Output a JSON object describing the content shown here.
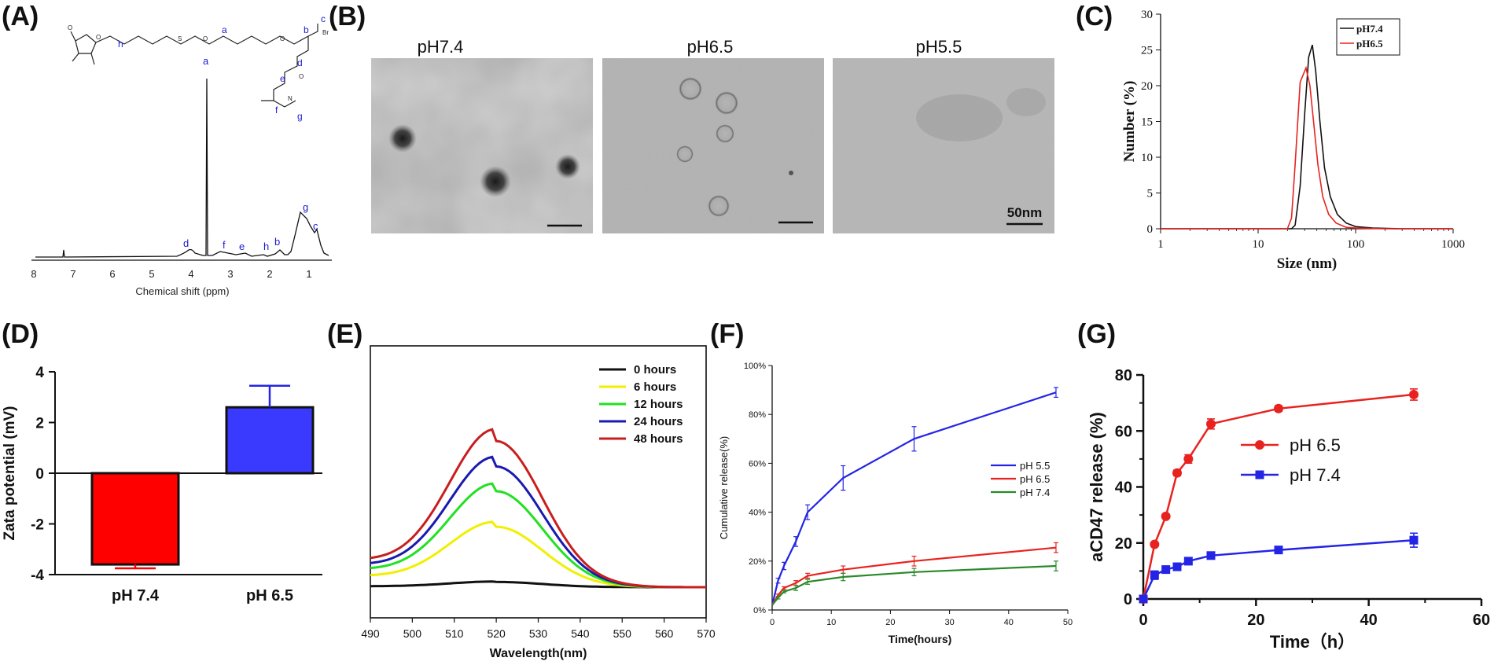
{
  "colors": {
    "red": "#e8231f",
    "blue": "#2424e6",
    "green": "#2a8a2a",
    "black": "#111111",
    "yellow": "#f0f000",
    "lime": "#22e022",
    "navy": "#1a1ab0",
    "darkred": "#c81e1e",
    "bar_blue": "#3a3aff"
  },
  "panels": {
    "A": {
      "letter": "(A)",
      "xlabel": "Chemical shift (ppm)",
      "xticks": [
        "8",
        "7",
        "6",
        "5",
        "4",
        "3",
        "2",
        "1"
      ],
      "peak_labels": [
        "a",
        "b",
        "c",
        "d",
        "e",
        "f",
        "g",
        "h"
      ],
      "structure_labels": [
        "h",
        "a",
        "b",
        "c",
        "d",
        "e",
        "f",
        "g"
      ],
      "structure_small": [
        "O",
        "O",
        "S",
        "O",
        "O",
        "O",
        "Br",
        "N"
      ]
    },
    "B": {
      "letter": "(B)",
      "images": [
        {
          "label": "pH7.4"
        },
        {
          "label": "pH6.5"
        },
        {
          "label": "pH5.5"
        }
      ],
      "scale_text": "50nm"
    }
  },
  "chart_data": [
    {
      "panel": "C",
      "letter": "(C)",
      "type": "line",
      "xlabel": "Size (nm)",
      "ylabel": "Number (%)",
      "xscale": "log",
      "xlim": [
        1,
        1000
      ],
      "ylim": [
        0,
        30
      ],
      "xticks": [
        "1",
        "10",
        "100",
        "1000"
      ],
      "yticks": [
        "0",
        "5",
        "10",
        "15",
        "20",
        "25",
        "30"
      ],
      "legend": "top-right",
      "series": [
        {
          "name": "pH7.4",
          "color": "#111111",
          "x": [
            1,
            22,
            24,
            27,
            30,
            33,
            36,
            39,
            43,
            48,
            55,
            65,
            80,
            100,
            150,
            300,
            1000
          ],
          "y": [
            0,
            0,
            0.5,
            6,
            16,
            24,
            25.7,
            22,
            15,
            8.5,
            4.5,
            2,
            0.8,
            0.3,
            0.1,
            0,
            0
          ]
        },
        {
          "name": "pH6.5",
          "color": "#e8231f",
          "x": [
            1,
            20,
            22,
            24,
            27,
            31,
            34,
            37,
            41,
            46,
            53,
            63,
            80,
            100,
            200,
            1000
          ],
          "y": [
            0,
            0,
            1.5,
            9,
            20.5,
            22.5,
            20,
            15,
            9,
            4.5,
            2,
            0.8,
            0.2,
            0.1,
            0,
            0
          ]
        }
      ]
    },
    {
      "panel": "D",
      "letter": "(D)",
      "type": "bar",
      "ylabel": "Zata potential (mV)",
      "ylim": [
        -4,
        4
      ],
      "yticks": [
        "-4",
        "-2",
        "0",
        "2",
        "4"
      ],
      "categories": [
        "pH 7.4",
        "pH 6.5"
      ],
      "values": [
        -3.6,
        2.6
      ],
      "errors": [
        0.15,
        0.85
      ],
      "colors": [
        "#ff0000",
        "#3a3aff"
      ],
      "error_colors": [
        "#ff0000",
        "#2424e6"
      ]
    },
    {
      "panel": "E",
      "letter": "(E)",
      "type": "line",
      "xlabel": "Wavelength(nm)",
      "ylabel": "",
      "xlim": [
        490,
        570
      ],
      "xticks": [
        "490",
        "500",
        "510",
        "520",
        "530",
        "540",
        "550",
        "560",
        "570"
      ],
      "legend": "top-right",
      "series": [
        {
          "name": "0 hours",
          "color": "#111111",
          "peak": 0.04
        },
        {
          "name": "6 hours",
          "color": "#f0f000",
          "peak": 0.44
        },
        {
          "name": "12 hours",
          "color": "#22e022",
          "peak": 0.68
        },
        {
          "name": "24 hours",
          "color": "#1a1ab0",
          "peak": 0.84
        },
        {
          "name": "48 hours",
          "color": "#c81e1e",
          "peak": 1.0
        }
      ]
    },
    {
      "panel": "F",
      "letter": "(F)",
      "type": "line",
      "xlabel": "Time(hours)",
      "ylabel": "Cumulative release(%)",
      "xlim": [
        0,
        50
      ],
      "ylim": [
        0,
        100
      ],
      "xticks": [
        "0",
        "10",
        "20",
        "30",
        "40",
        "50"
      ],
      "yticks": [
        "0%",
        "20%",
        "40%",
        "60%",
        "80%",
        "100%"
      ],
      "legend": "right",
      "series": [
        {
          "name": "pH 5.5",
          "color": "#2424e6",
          "x": [
            0,
            1,
            2,
            4,
            6,
            12,
            24,
            48
          ],
          "y": [
            2,
            12,
            18,
            28,
            40,
            54,
            70,
            89
          ],
          "err": [
            0,
            1,
            1.5,
            2,
            3,
            5,
            5,
            2
          ]
        },
        {
          "name": "pH 6.5",
          "color": "#e8231f",
          "x": [
            0,
            1,
            2,
            4,
            6,
            12,
            24,
            48
          ],
          "y": [
            2,
            6,
            9,
            11,
            14,
            16.5,
            20,
            25.5
          ],
          "err": [
            0,
            0.5,
            0.5,
            1,
            1,
            1.5,
            2,
            2
          ]
        },
        {
          "name": "pH 7.4",
          "color": "#2a8a2a",
          "x": [
            0,
            1,
            2,
            4,
            6,
            12,
            24,
            48
          ],
          "y": [
            2,
            5,
            7.5,
            9,
            11.5,
            13.5,
            15.5,
            18
          ],
          "err": [
            0,
            0.5,
            0.5,
            1,
            1,
            1.5,
            1.5,
            2
          ]
        }
      ]
    },
    {
      "panel": "G",
      "letter": "(G)",
      "type": "line",
      "xlabel": "Time（h）",
      "ylabel": "aCD47 release (%)",
      "xlim": [
        0,
        60
      ],
      "ylim": [
        0,
        80
      ],
      "xticks": [
        "0",
        "20",
        "40",
        "60"
      ],
      "yticks": [
        "0",
        "20",
        "40",
        "60",
        "80"
      ],
      "legend": "right",
      "series": [
        {
          "name": "pH 6.5",
          "color": "#e8231f",
          "marker": "circle",
          "x": [
            0,
            2,
            4,
            6,
            8,
            12,
            24,
            48
          ],
          "y": [
            0,
            19.5,
            29.5,
            45,
            50,
            62.5,
            68,
            73
          ],
          "err": [
            0,
            0.5,
            0.5,
            1,
            1.5,
            1.8,
            1,
            2
          ]
        },
        {
          "name": "pH 7.4",
          "color": "#2424e6",
          "marker": "square",
          "x": [
            0,
            2,
            4,
            6,
            8,
            12,
            24,
            48
          ],
          "y": [
            0,
            8.5,
            10.5,
            11.5,
            13.5,
            15.5,
            17.5,
            21
          ],
          "err": [
            0,
            1.5,
            1,
            1,
            1,
            1,
            1,
            2.5
          ]
        }
      ]
    }
  ]
}
